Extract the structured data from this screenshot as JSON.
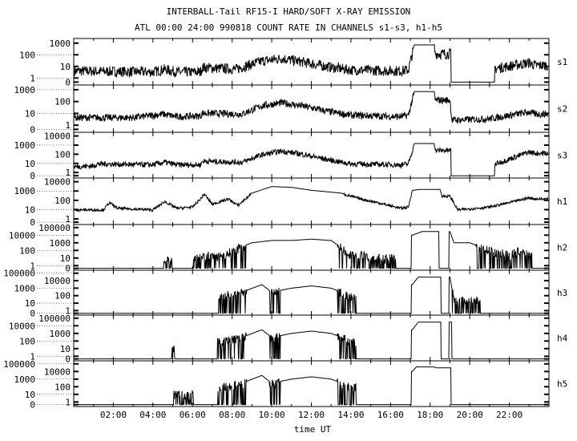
{
  "chart_data": {
    "type": "line",
    "title": "INTERBALL-Tail RF15-I HARD/SOFT X-RAY EMISSION",
    "subtitle": "ATL 00:00 24:00 990818  COUNT RATE IN CHANNELS s1-s3, h1-h5",
    "xlabel": "time UT",
    "xlim": [
      0,
      24
    ],
    "xtick_labels": [
      "02:00",
      "04:00",
      "06:00",
      "08:00",
      "10:00",
      "12:00",
      "14:00",
      "16:00",
      "18:00",
      "20:00",
      "22:00"
    ],
    "y_scale": "log",
    "grid": false,
    "colors": {
      "line": "#000000",
      "background": "#ffffff"
    },
    "panels": [
      {
        "name": "s1",
        "yticks": [
          "1000",
          "100",
          "10",
          "1",
          "0"
        ],
        "ymax": 1000,
        "noise": "heavy",
        "points": [
          [
            0,
            5
          ],
          [
            4,
            4
          ],
          [
            4.6,
            7
          ],
          [
            5.2,
            4
          ],
          [
            6.4,
            4
          ],
          [
            6.5,
            10
          ],
          [
            8.2,
            7
          ],
          [
            9.5,
            35
          ],
          [
            10.5,
            60
          ],
          [
            11.5,
            30
          ],
          [
            13,
            10
          ],
          [
            14,
            6
          ],
          [
            16.5,
            5
          ],
          [
            16.9,
            6
          ],
          [
            17.2,
            700
          ],
          [
            18.2,
            700
          ],
          [
            18.25,
            150
          ],
          [
            19,
            150
          ],
          [
            19.1,
            0
          ],
          [
            21.2,
            0
          ],
          [
            21.3,
            8
          ],
          [
            23,
            25
          ],
          [
            23.3,
            15
          ]
        ]
      },
      {
        "name": "s2",
        "yticks": [
          "1000",
          "100",
          "10",
          "1",
          "0"
        ],
        "ymax": 1000,
        "noise": "medium",
        "points": [
          [
            0,
            5
          ],
          [
            3,
            5
          ],
          [
            4.5,
            10
          ],
          [
            5.2,
            6
          ],
          [
            6.4,
            7
          ],
          [
            6.5,
            12
          ],
          [
            8.5,
            10
          ],
          [
            9.5,
            50
          ],
          [
            10.5,
            90
          ],
          [
            11.5,
            50
          ],
          [
            13,
            15
          ],
          [
            14,
            8
          ],
          [
            16.5,
            6
          ],
          [
            16.9,
            8
          ],
          [
            17.2,
            700
          ],
          [
            18.2,
            700
          ],
          [
            18.25,
            150
          ],
          [
            19,
            150
          ],
          [
            19.1,
            3
          ],
          [
            21,
            4
          ],
          [
            23,
            15
          ],
          [
            23.3,
            10
          ]
        ]
      },
      {
        "name": "s3",
        "yticks": [
          "10000",
          "1000",
          "100",
          "10",
          "1",
          "0"
        ],
        "ymax": 10000,
        "noise": "medium",
        "points": [
          [
            0,
            5
          ],
          [
            1,
            6
          ],
          [
            1.2,
            10
          ],
          [
            4,
            8
          ],
          [
            4.6,
            15
          ],
          [
            5.2,
            8
          ],
          [
            6.4,
            8
          ],
          [
            6.5,
            20
          ],
          [
            8.5,
            15
          ],
          [
            9.5,
            100
          ],
          [
            10.5,
            250
          ],
          [
            11.5,
            120
          ],
          [
            13,
            25
          ],
          [
            14,
            10
          ],
          [
            16.5,
            8
          ],
          [
            16.9,
            10
          ],
          [
            17.2,
            1500
          ],
          [
            18.2,
            1500
          ],
          [
            18.25,
            300
          ],
          [
            19,
            300
          ],
          [
            19.1,
            0
          ],
          [
            21.2,
            0
          ],
          [
            21.3,
            10
          ],
          [
            23,
            200
          ],
          [
            23.3,
            150
          ]
        ]
      },
      {
        "name": "h1",
        "yticks": [
          "10000",
          "1000",
          "100",
          "10",
          "1",
          "0"
        ],
        "ymax": 10000,
        "noise": "light",
        "points": [
          [
            0,
            10
          ],
          [
            1.5,
            10
          ],
          [
            1.8,
            60
          ],
          [
            2.2,
            15
          ],
          [
            4,
            10
          ],
          [
            4.6,
            80
          ],
          [
            5.2,
            15
          ],
          [
            6,
            20
          ],
          [
            6.4,
            150
          ],
          [
            6.6,
            500
          ],
          [
            7,
            40
          ],
          [
            7.8,
            150
          ],
          [
            8.3,
            30
          ],
          [
            9,
            600
          ],
          [
            10,
            3000
          ],
          [
            11,
            2500
          ],
          [
            12,
            1200
          ],
          [
            13.5,
            600
          ],
          [
            14.5,
            150
          ],
          [
            15.5,
            50
          ],
          [
            16.5,
            15
          ],
          [
            16.9,
            20
          ],
          [
            17.1,
            1200
          ],
          [
            17.5,
            1500
          ],
          [
            18.5,
            1500
          ],
          [
            18.6,
            300
          ],
          [
            19,
            300
          ],
          [
            19.4,
            10
          ],
          [
            21,
            20
          ],
          [
            22,
            60
          ],
          [
            23,
            200
          ],
          [
            23.3,
            150
          ]
        ]
      },
      {
        "name": "h2",
        "yticks": [
          "100000",
          "10000",
          "1000",
          "100",
          "10",
          "1",
          "0"
        ],
        "ymax": 100000,
        "noise": "bursty",
        "points": [
          [
            0,
            0
          ],
          [
            4.5,
            0
          ],
          [
            4.6,
            10
          ],
          [
            5,
            10
          ],
          [
            5.1,
            0
          ],
          [
            6,
            0
          ],
          [
            6.1,
            20
          ],
          [
            7.5,
            20
          ],
          [
            8,
            100
          ],
          [
            9,
            1000
          ],
          [
            10,
            2000
          ],
          [
            11,
            2000
          ],
          [
            12,
            3000
          ],
          [
            13,
            2000
          ],
          [
            14,
            30
          ],
          [
            14.5,
            30
          ],
          [
            15,
            10
          ],
          [
            16,
            10
          ],
          [
            16.5,
            0
          ],
          [
            17,
            0
          ],
          [
            17.1,
            10000
          ],
          [
            17.6,
            30000
          ],
          [
            18.4,
            30000
          ],
          [
            18.5,
            0
          ],
          [
            18.9,
            0
          ],
          [
            19,
            30000
          ],
          [
            19.2,
            1000
          ],
          [
            20,
            1000
          ],
          [
            21,
            100
          ],
          [
            22,
            30
          ],
          [
            22.5,
            100
          ],
          [
            23,
            30
          ],
          [
            23.3,
            0
          ]
        ]
      },
      {
        "name": "h3",
        "yticks": [
          "100000",
          "10000",
          "1000",
          "100",
          "10",
          "1",
          "0"
        ],
        "ymax": 100000,
        "noise": "bursty",
        "points": [
          [
            0,
            0
          ],
          [
            5,
            0
          ],
          [
            5.1,
            0
          ],
          [
            7,
            0
          ],
          [
            7.5,
            100
          ],
          [
            8.5,
            300
          ],
          [
            9.5,
            3000
          ],
          [
            10,
            300
          ],
          [
            11,
            1000
          ],
          [
            12,
            2000
          ],
          [
            13,
            1000
          ],
          [
            14,
            100
          ],
          [
            14.5,
            0
          ],
          [
            17,
            0
          ],
          [
            17.1,
            3000
          ],
          [
            17.4,
            30000
          ],
          [
            18.5,
            30000
          ],
          [
            18.6,
            0
          ],
          [
            18.9,
            0
          ],
          [
            19,
            30000
          ],
          [
            19.2,
            30
          ],
          [
            20.5,
            30
          ],
          [
            20.6,
            0
          ],
          [
            24,
            0
          ]
        ]
      },
      {
        "name": "h4",
        "yticks": [
          "100000",
          "10000",
          "1000",
          "100",
          "10",
          "1",
          "0"
        ],
        "ymax": 100000,
        "noise": "bursty",
        "points": [
          [
            0,
            0
          ],
          [
            4.9,
            0
          ],
          [
            5,
            10
          ],
          [
            5.2,
            0
          ],
          [
            7,
            0
          ],
          [
            7.5,
            100
          ],
          [
            8.5,
            300
          ],
          [
            9.5,
            3000
          ],
          [
            10,
            300
          ],
          [
            11,
            1000
          ],
          [
            12,
            2000
          ],
          [
            13,
            1000
          ],
          [
            14,
            100
          ],
          [
            14.5,
            0
          ],
          [
            17,
            0
          ],
          [
            17.1,
            3000
          ],
          [
            17.4,
            30000
          ],
          [
            18.5,
            30000
          ],
          [
            18.6,
            0
          ],
          [
            18.9,
            0
          ],
          [
            19,
            30000
          ],
          [
            19.2,
            0
          ],
          [
            24,
            0
          ]
        ]
      },
      {
        "name": "h5",
        "yticks": [
          "100000",
          "10000",
          "1000",
          "100",
          "10",
          "1",
          "0"
        ],
        "ymax": 100000,
        "noise": "bursty",
        "points": [
          [
            0,
            0
          ],
          [
            5,
            0
          ],
          [
            5.1,
            10
          ],
          [
            6,
            10
          ],
          [
            6.1,
            0
          ],
          [
            7,
            0
          ],
          [
            7.5,
            100
          ],
          [
            8.5,
            300
          ],
          [
            9.5,
            3000
          ],
          [
            10,
            300
          ],
          [
            11,
            1000
          ],
          [
            12,
            2000
          ],
          [
            13,
            1000
          ],
          [
            14,
            100
          ],
          [
            14.5,
            0
          ],
          [
            17,
            0
          ],
          [
            17.1,
            10000
          ],
          [
            17.3,
            40000
          ],
          [
            18.2,
            40000
          ],
          [
            18.3,
            30000
          ],
          [
            19,
            30000
          ],
          [
            19.1,
            0
          ],
          [
            24,
            0
          ]
        ]
      }
    ]
  }
}
